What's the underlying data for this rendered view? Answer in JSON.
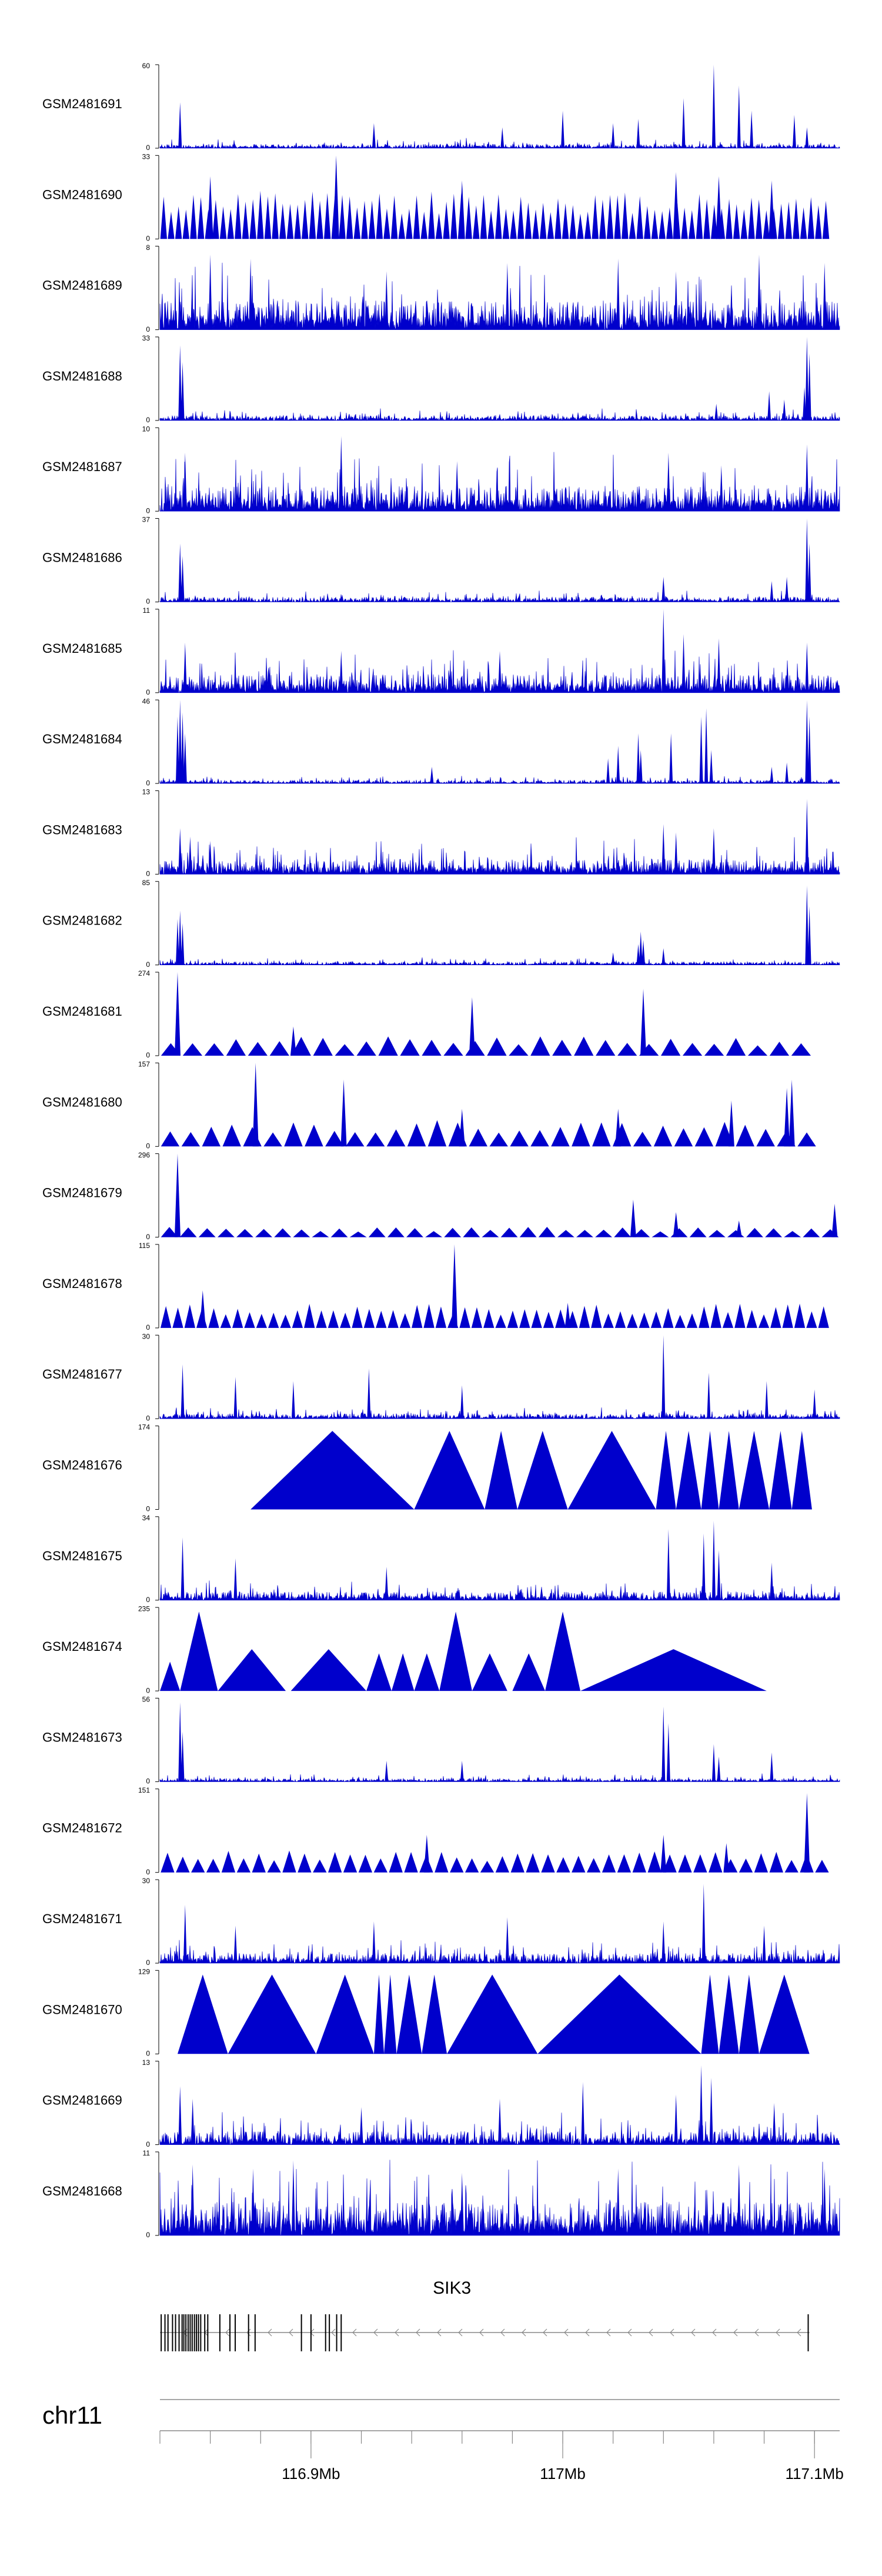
{
  "chart_data": {
    "type": "area",
    "title": "",
    "xlabel": "",
    "ylabel": "",
    "xlim": [
      116.84,
      117.11
    ],
    "x_unit": "Mb",
    "series_color": "#0000cc",
    "tracks": [
      {
        "name": "GSM2481691",
        "ymax": 60,
        "style": "dense",
        "seed": 11,
        "base": 0.05,
        "spikes": [
          [
            116.848,
            0.55
          ],
          [
            116.925,
            0.3
          ],
          [
            116.976,
            0.25
          ],
          [
            117.0,
            0.45
          ],
          [
            117.02,
            0.3
          ],
          [
            117.03,
            0.35
          ],
          [
            117.048,
            0.6
          ],
          [
            117.06,
            1.0
          ],
          [
            117.07,
            0.75
          ],
          [
            117.075,
            0.45
          ],
          [
            117.092,
            0.4
          ],
          [
            117.097,
            0.25
          ]
        ]
      },
      {
        "name": "GSM2481690",
        "ymax": 33,
        "style": "tri",
        "seed": 12,
        "range": [
          116.84,
          117.106
        ],
        "n": 90,
        "amp": 0.55,
        "spikes": [
          [
            116.91,
            1.0
          ],
          [
            116.86,
            0.75
          ],
          [
            117.045,
            0.8
          ],
          [
            117.062,
            0.75
          ],
          [
            117.083,
            0.7
          ],
          [
            116.96,
            0.7
          ]
        ]
      },
      {
        "name": "GSM2481689",
        "ymax": 8,
        "style": "dense",
        "seed": 13,
        "base": 0.35,
        "spikes": [
          [
            116.86,
            0.9
          ],
          [
            116.876,
            0.85
          ],
          [
            116.93,
            0.7
          ],
          [
            116.978,
            0.8
          ],
          [
            117.022,
            0.85
          ],
          [
            117.045,
            0.7
          ],
          [
            117.078,
            0.9
          ],
          [
            117.104,
            0.8
          ]
        ]
      },
      {
        "name": "GSM2481688",
        "ymax": 33,
        "style": "dense",
        "seed": 14,
        "base": 0.06,
        "spikes": [
          [
            116.848,
            0.9
          ],
          [
            116.849,
            0.7
          ],
          [
            117.082,
            0.35
          ],
          [
            117.088,
            0.25
          ],
          [
            117.096,
            0.4
          ],
          [
            117.097,
            1.0
          ],
          [
            117.098,
            0.8
          ],
          [
            117.061,
            0.2
          ]
        ]
      },
      {
        "name": "GSM2481687",
        "ymax": 10,
        "style": "dense",
        "seed": 15,
        "base": 0.3,
        "spikes": [
          [
            116.85,
            0.7
          ],
          [
            116.912,
            0.9
          ],
          [
            116.958,
            0.6
          ],
          [
            117.042,
            0.7
          ],
          [
            117.063,
            0.55
          ],
          [
            117.097,
            0.8
          ]
        ]
      },
      {
        "name": "GSM2481686",
        "ymax": 37,
        "style": "dense",
        "seed": 16,
        "base": 0.06,
        "spikes": [
          [
            116.848,
            0.7
          ],
          [
            116.849,
            0.55
          ],
          [
            117.04,
            0.3
          ],
          [
            117.083,
            0.25
          ],
          [
            117.089,
            0.3
          ],
          [
            117.097,
            1.0
          ],
          [
            117.098,
            0.7
          ]
        ]
      },
      {
        "name": "GSM2481685",
        "ymax": 11,
        "style": "dense",
        "seed": 17,
        "base": 0.22,
        "spikes": [
          [
            116.85,
            0.6
          ],
          [
            116.912,
            0.5
          ],
          [
            116.975,
            0.5
          ],
          [
            117.04,
            1.0
          ],
          [
            117.048,
            0.7
          ],
          [
            117.062,
            0.65
          ],
          [
            117.097,
            0.6
          ]
        ]
      },
      {
        "name": "GSM2481684",
        "ymax": 46,
        "style": "dense",
        "seed": 18,
        "base": 0.04,
        "spikes": [
          [
            116.847,
            0.8
          ],
          [
            116.848,
            1.0
          ],
          [
            116.849,
            0.85
          ],
          [
            116.85,
            0.6
          ],
          [
            117.018,
            0.3
          ],
          [
            117.022,
            0.45
          ],
          [
            117.03,
            0.6
          ],
          [
            117.031,
            0.4
          ],
          [
            117.043,
            0.6
          ],
          [
            117.055,
            0.8
          ],
          [
            117.057,
            0.9
          ],
          [
            117.059,
            0.4
          ],
          [
            117.083,
            0.2
          ],
          [
            117.089,
            0.25
          ],
          [
            117.097,
            1.0
          ],
          [
            117.098,
            0.8
          ],
          [
            116.948,
            0.2
          ]
        ]
      },
      {
        "name": "GSM2481683",
        "ymax": 13,
        "style": "dense",
        "seed": 19,
        "base": 0.18,
        "spikes": [
          [
            116.848,
            0.55
          ],
          [
            116.852,
            0.45
          ],
          [
            116.86,
            0.4
          ],
          [
            117.04,
            0.6
          ],
          [
            117.045,
            0.5
          ],
          [
            117.06,
            0.55
          ],
          [
            117.097,
            0.9
          ]
        ]
      },
      {
        "name": "GSM2481682",
        "ymax": 85,
        "style": "dense",
        "seed": 20,
        "base": 0.04,
        "spikes": [
          [
            116.847,
            0.55
          ],
          [
            116.848,
            0.65
          ],
          [
            116.849,
            0.5
          ],
          [
            117.02,
            0.15
          ],
          [
            117.03,
            0.25
          ],
          [
            117.031,
            0.4
          ],
          [
            117.032,
            0.3
          ],
          [
            117.04,
            0.2
          ],
          [
            117.097,
            0.95
          ],
          [
            117.098,
            0.7
          ]
        ]
      },
      {
        "name": "GSM2481681",
        "ymax": 274,
        "style": "tri",
        "seed": 21,
        "range": [
          116.84,
          117.099
        ],
        "n": 30,
        "amp": 0.22,
        "spikes": [
          [
            116.847,
            1.0
          ],
          [
            116.964,
            0.7
          ],
          [
            117.032,
            0.8
          ],
          [
            116.893,
            0.35
          ]
        ]
      },
      {
        "name": "GSM2481680",
        "ymax": 157,
        "style": "tri",
        "seed": 22,
        "range": [
          116.84,
          117.101
        ],
        "n": 32,
        "amp": 0.3,
        "spikes": [
          [
            116.878,
            1.0
          ],
          [
            116.913,
            0.8
          ],
          [
            116.96,
            0.45
          ],
          [
            117.022,
            0.45
          ],
          [
            117.067,
            0.55
          ],
          [
            117.089,
            0.7
          ],
          [
            117.091,
            0.8
          ]
        ]
      },
      {
        "name": "GSM2481679",
        "ymax": 296,
        "style": "tri",
        "seed": 23,
        "range": [
          116.84,
          117.11
        ],
        "n": 36,
        "amp": 0.12,
        "spikes": [
          [
            116.847,
            1.0
          ],
          [
            117.028,
            0.45
          ],
          [
            117.045,
            0.3
          ],
          [
            117.07,
            0.2
          ],
          [
            117.108,
            0.4
          ]
        ]
      },
      {
        "name": "GSM2481678",
        "ymax": 115,
        "style": "tri",
        "seed": 24,
        "range": [
          116.84,
          117.106
        ],
        "n": 56,
        "amp": 0.28,
        "spikes": [
          [
            116.957,
            1.0
          ],
          [
            116.857,
            0.45
          ],
          [
            117.002,
            0.3
          ]
        ]
      },
      {
        "name": "GSM2481677",
        "ymax": 30,
        "style": "dense",
        "seed": 25,
        "base": 0.06,
        "spikes": [
          [
            116.849,
            0.65
          ],
          [
            116.87,
            0.5
          ],
          [
            116.893,
            0.45
          ],
          [
            116.923,
            0.6
          ],
          [
            116.96,
            0.4
          ],
          [
            117.04,
            1.0
          ],
          [
            117.058,
            0.55
          ],
          [
            117.081,
            0.45
          ],
          [
            117.1,
            0.35
          ]
        ]
      },
      {
        "name": "GSM2481676",
        "ymax": 174,
        "style": "tri",
        "seed": 26,
        "range": [
          116.876,
          117.099
        ],
        "n": 0,
        "amp": 0.0,
        "explicit": [
          [
            116.876,
            116.941,
            0.94
          ],
          [
            116.941,
            116.969,
            0.94
          ],
          [
            116.969,
            116.982,
            0.94
          ],
          [
            116.982,
            117.002,
            0.94
          ],
          [
            117.002,
            117.037,
            0.94
          ],
          [
            117.037,
            117.045,
            0.94
          ],
          [
            117.045,
            117.055,
            0.94
          ],
          [
            117.055,
            117.062,
            0.94
          ],
          [
            117.062,
            117.07,
            0.94
          ],
          [
            117.07,
            117.082,
            0.94
          ],
          [
            117.082,
            117.091,
            0.94
          ],
          [
            117.091,
            117.099,
            0.94
          ]
        ]
      },
      {
        "name": "GSM2481675",
        "ymax": 34,
        "style": "dense",
        "seed": 27,
        "base": 0.1,
        "spikes": [
          [
            116.849,
            0.75
          ],
          [
            116.87,
            0.5
          ],
          [
            116.93,
            0.4
          ],
          [
            117.042,
            0.85
          ],
          [
            117.056,
            0.8
          ],
          [
            117.06,
            0.95
          ],
          [
            117.062,
            0.6
          ],
          [
            117.083,
            0.45
          ]
        ]
      },
      {
        "name": "GSM2481674",
        "ymax": 235,
        "style": "tri",
        "seed": 28,
        "range": [
          116.84,
          117.081
        ],
        "n": 0,
        "amp": 0.0,
        "explicit": [
          [
            116.84,
            116.848,
            0.35
          ],
          [
            116.848,
            116.863,
            0.95
          ],
          [
            116.863,
            116.89,
            0.5
          ],
          [
            116.892,
            116.922,
            0.5
          ],
          [
            116.922,
            116.932,
            0.45
          ],
          [
            116.932,
            116.941,
            0.45
          ],
          [
            116.941,
            116.951,
            0.45
          ],
          [
            116.951,
            116.964,
            0.95
          ],
          [
            116.964,
            116.978,
            0.45
          ],
          [
            116.98,
            116.993,
            0.45
          ],
          [
            116.993,
            117.007,
            0.95
          ],
          [
            117.007,
            117.081,
            0.5
          ]
        ]
      },
      {
        "name": "GSM2481673",
        "ymax": 56,
        "style": "dense",
        "seed": 29,
        "base": 0.04,
        "spikes": [
          [
            116.848,
            0.95
          ],
          [
            116.849,
            0.6
          ],
          [
            116.93,
            0.25
          ],
          [
            116.96,
            0.25
          ],
          [
            117.04,
            0.9
          ],
          [
            117.042,
            0.7
          ],
          [
            117.06,
            0.45
          ],
          [
            117.062,
            0.3
          ],
          [
            117.083,
            0.35
          ]
        ]
      },
      {
        "name": "GSM2481672",
        "ymax": 151,
        "style": "tri",
        "seed": 30,
        "range": [
          116.84,
          117.106
        ],
        "n": 44,
        "amp": 0.25,
        "spikes": [
          [
            117.097,
            0.95
          ],
          [
            116.946,
            0.45
          ],
          [
            117.04,
            0.45
          ],
          [
            117.065,
            0.35
          ]
        ]
      },
      {
        "name": "GSM2481671",
        "ymax": 30,
        "style": "dense",
        "seed": 31,
        "base": 0.12,
        "spikes": [
          [
            116.85,
            0.7
          ],
          [
            116.87,
            0.45
          ],
          [
            116.925,
            0.5
          ],
          [
            116.978,
            0.55
          ],
          [
            117.04,
            0.5
          ],
          [
            117.056,
            0.95
          ],
          [
            117.08,
            0.45
          ]
        ]
      },
      {
        "name": "GSM2481670",
        "ymax": 129,
        "style": "tri",
        "seed": 32,
        "range": [
          116.847,
          117.098
        ],
        "n": 0,
        "amp": 0.0,
        "explicit": [
          [
            116.847,
            116.867,
            0.95
          ],
          [
            116.867,
            116.902,
            0.95
          ],
          [
            116.902,
            116.925,
            0.95
          ],
          [
            116.925,
            116.929,
            0.95
          ],
          [
            116.929,
            116.934,
            0.95
          ],
          [
            116.934,
            116.944,
            0.95
          ],
          [
            116.944,
            116.954,
            0.95
          ],
          [
            116.954,
            116.99,
            0.95
          ],
          [
            116.99,
            117.055,
            0.95
          ],
          [
            117.055,
            117.062,
            0.95
          ],
          [
            117.062,
            117.07,
            0.95
          ],
          [
            117.07,
            117.078,
            0.95
          ],
          [
            117.078,
            117.098,
            0.95
          ]
        ]
      },
      {
        "name": "GSM2481669",
        "ymax": 13,
        "style": "dense",
        "seed": 33,
        "base": 0.16,
        "spikes": [
          [
            116.848,
            0.7
          ],
          [
            116.853,
            0.55
          ],
          [
            116.92,
            0.45
          ],
          [
            116.975,
            0.55
          ],
          [
            117.008,
            0.75
          ],
          [
            117.045,
            0.6
          ],
          [
            117.055,
            0.95
          ],
          [
            117.059,
            0.8
          ],
          [
            117.084,
            0.5
          ]
        ]
      },
      {
        "name": "GSM2481668",
        "ymax": 11,
        "style": "dense",
        "seed": 34,
        "base": 0.4,
        "spikes": [
          [
            116.853,
            0.85
          ],
          [
            116.877,
            0.8
          ],
          [
            116.893,
            0.9
          ],
          [
            116.96,
            0.75
          ],
          [
            117.022,
            0.8
          ],
          [
            117.07,
            0.85
          ],
          [
            117.104,
            0.8
          ]
        ]
      }
    ],
    "gene": {
      "name": "SIK3",
      "start": 116.84,
      "end": 117.098,
      "strand": "-",
      "exons": [
        116.8405,
        116.842,
        116.8432,
        116.845,
        116.8462,
        116.8476,
        116.8488,
        116.8495,
        116.8503,
        116.8512,
        116.852,
        116.8528,
        116.8537,
        116.8545,
        116.8553,
        116.8562,
        116.8578,
        116.859,
        116.8638,
        116.8678,
        116.8699,
        116.8752,
        116.8778,
        116.8962,
        116.9,
        116.9058,
        116.9073,
        116.9102,
        116.912,
        117.0975
      ]
    },
    "chromosome": "chr11",
    "x_ticks": [
      {
        "value": 116.9,
        "label": "116.9Mb"
      },
      {
        "value": 117.0,
        "label": "117Mb"
      },
      {
        "value": 117.1,
        "label": "117.1Mb"
      }
    ],
    "minor_tick_step": 0.02
  }
}
